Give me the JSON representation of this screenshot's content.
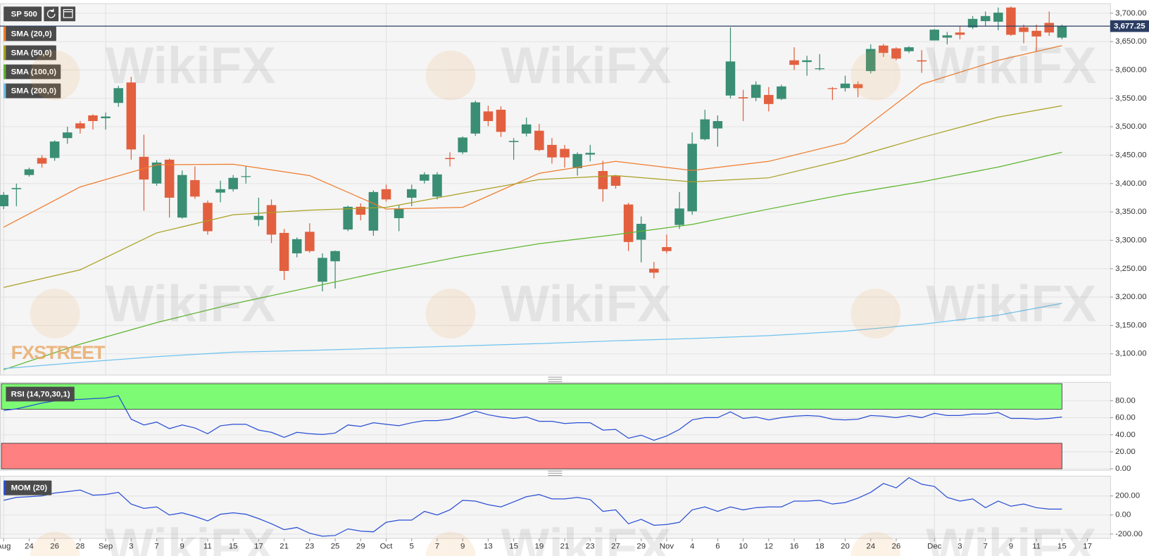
{
  "chart_data": [
    {
      "type": "candlestick",
      "title": "SP 500",
      "categories": [
        "Aug",
        null,
        "24",
        null,
        "26",
        null,
        "28",
        null,
        "Sep",
        null,
        "3",
        null,
        "7",
        null,
        "9",
        null,
        "11",
        null,
        "15",
        null,
        "17",
        null,
        "21",
        null,
        "23",
        null,
        "25",
        null,
        "29",
        null,
        "Oct",
        null,
        "5",
        null,
        "7",
        null,
        "9",
        null,
        "13",
        null,
        "15",
        null,
        "19",
        null,
        "21",
        null,
        "23",
        null,
        "27",
        null,
        "29",
        null,
        "Nov",
        null,
        "4",
        null,
        "6",
        null,
        "10",
        null,
        "12",
        null,
        "16",
        null,
        "18",
        null,
        "20",
        null,
        "24",
        null,
        "26",
        null,
        null,
        "Dec",
        null,
        "3",
        null,
        "7",
        null,
        "9",
        null,
        "11",
        null,
        "15",
        null,
        "17"
      ],
      "open": [
        3360,
        3390,
        3415,
        3445,
        3445,
        3480,
        3506,
        3520,
        3515,
        3542,
        3578,
        3447,
        3400,
        3442,
        3340,
        3406,
        3366,
        3384,
        3390,
        3412,
        3336,
        3362,
        3313,
        3277,
        3315,
        3227,
        3263,
        3319,
        3359,
        3317,
        3390,
        3339,
        3375,
        3405,
        3377,
        3445,
        3455,
        3488,
        3527,
        3530,
        3473,
        3488,
        3493,
        3468,
        3461,
        3427,
        3451,
        3422,
        3413,
        3363,
        3301,
        3250,
        3288,
        3327,
        3351,
        3478,
        3497,
        3555,
        3552,
        3551,
        3556,
        3549,
        3617,
        3614,
        3602,
        3568,
        3568,
        3575,
        3598,
        3643,
        3638,
        3633,
        3617,
        3652,
        3657,
        3666,
        3675,
        3686,
        3685,
        3710,
        3675,
        3669,
        3683,
        3657,
        null,
        null
      ],
      "high": [
        3385,
        3400,
        3428,
        3450,
        3476,
        3500,
        3510,
        3522,
        3525,
        3572,
        3588,
        3486,
        3441,
        3444,
        3423,
        3430,
        3370,
        3405,
        3415,
        3430,
        3375,
        3372,
        3320,
        3305,
        3330,
        3277,
        3282,
        3361,
        3365,
        3388,
        3398,
        3362,
        3398,
        3420,
        3420,
        3455,
        3483,
        3546,
        3537,
        3536,
        3480,
        3516,
        3505,
        3480,
        3468,
        3455,
        3468,
        3440,
        3415,
        3366,
        3342,
        3262,
        3310,
        3385,
        3490,
        3530,
        3520,
        3675,
        3565,
        3580,
        3570,
        3574,
        3640,
        3625,
        3628,
        3570,
        3590,
        3580,
        3645,
        3646,
        3640,
        3642,
        3635,
        3672,
        3667,
        3678,
        3695,
        3703,
        3710,
        3712,
        3680,
        3680,
        3703,
        3680,
        null,
        null
      ],
      "low": [
        3355,
        3360,
        3412,
        3428,
        3440,
        3470,
        3488,
        3495,
        3495,
        3535,
        3442,
        3352,
        3396,
        3340,
        3338,
        3373,
        3310,
        3367,
        3386,
        3400,
        3325,
        3295,
        3230,
        3270,
        3278,
        3210,
        3215,
        3316,
        3335,
        3308,
        3368,
        3316,
        3360,
        3400,
        3372,
        3430,
        3452,
        3484,
        3501,
        3482,
        3442,
        3483,
        3457,
        3435,
        3428,
        3414,
        3439,
        3368,
        3391,
        3281,
        3261,
        3233,
        3277,
        3320,
        3345,
        3476,
        3465,
        3550,
        3510,
        3545,
        3527,
        3547,
        3600,
        3590,
        3599,
        3547,
        3562,
        3552,
        3594,
        3623,
        3617,
        3630,
        3595,
        3652,
        3645,
        3654,
        3672,
        3678,
        3670,
        3660,
        3647,
        3633,
        3660,
        3654,
        null,
        null
      ],
      "close": [
        3380,
        3392,
        3425,
        3435,
        3474,
        3490,
        3497,
        3510,
        3518,
        3568,
        3460,
        3407,
        3437,
        3375,
        3415,
        3377,
        3316,
        3390,
        3410,
        3413,
        3343,
        3310,
        3246,
        3302,
        3281,
        3269,
        3281,
        3359,
        3345,
        3385,
        3372,
        3356,
        3390,
        3416,
        3416,
        3443,
        3481,
        3543,
        3510,
        3491,
        3475,
        3504,
        3459,
        3446,
        3446,
        3452,
        3454,
        3390,
        3396,
        3297,
        3329,
        3243,
        3281,
        3356,
        3470,
        3513,
        3510,
        3615,
        3550,
        3574,
        3540,
        3571,
        3609,
        3617,
        3603,
        3567,
        3576,
        3568,
        3637,
        3630,
        3620,
        3640,
        3615,
        3671,
        3661,
        3662,
        3690,
        3695,
        3701,
        3662,
        3667,
        3659,
        3666,
        3677.25,
        null,
        null
      ],
      "up_color": "#3a8e74",
      "down_color": "#e2603f",
      "series": [
        {
          "name": "SMA (20,0)",
          "color": "#f07b2c",
          "x": [
            0,
            6,
            12,
            18,
            24,
            30,
            36,
            42,
            48,
            54,
            60,
            66,
            72,
            78,
            83
          ],
          "values": [
            3323,
            3394,
            3433,
            3434,
            3414,
            3355,
            3358,
            3418,
            3439,
            3423,
            3439,
            3472,
            3575,
            3617,
            3643
          ]
        },
        {
          "name": "SMA (50,0)",
          "color": "#a9a023",
          "x": [
            0,
            6,
            12,
            18,
            24,
            30,
            36,
            42,
            48,
            54,
            60,
            66,
            72,
            78,
            83
          ],
          "values": [
            3217,
            3248,
            3313,
            3345,
            3353,
            3358,
            3383,
            3407,
            3414,
            3403,
            3410,
            3442,
            3481,
            3517,
            3537
          ]
        },
        {
          "name": "SMA (100,0)",
          "color": "#5db52f",
          "x": [
            0,
            6,
            12,
            18,
            24,
            30,
            36,
            42,
            48,
            54,
            60,
            66,
            72,
            78,
            83
          ],
          "values": [
            3072,
            3117,
            3155,
            3188,
            3217,
            3246,
            3272,
            3294,
            3310,
            3328,
            3355,
            3381,
            3403,
            3429,
            3455
          ]
        },
        {
          "name": "SMA (200,0)",
          "color": "#6fc2ee",
          "x": [
            0,
            6,
            12,
            18,
            24,
            30,
            36,
            42,
            48,
            54,
            60,
            66,
            72,
            78,
            83
          ],
          "values": [
            3074,
            3085,
            3095,
            3103,
            3106,
            3110,
            3114,
            3118,
            3123,
            3127,
            3132,
            3140,
            3152,
            3168,
            3189
          ]
        }
      ],
      "last_price": {
        "value": 3677.25,
        "label": "3,677.25"
      },
      "last_price_color": "#2b3d63",
      "ylim": [
        3062.6,
        3716.8
      ],
      "yticks": [
        {
          "value": 3100,
          "label": "3,100.00"
        },
        {
          "value": 3150,
          "label": "3,150.00"
        },
        {
          "value": 3200,
          "label": "3,200.00"
        },
        {
          "value": 3250,
          "label": "3,250.00"
        },
        {
          "value": 3300,
          "label": "3,300.00"
        },
        {
          "value": 3350,
          "label": "3,350.00"
        },
        {
          "value": 3400,
          "label": "3,400.00"
        },
        {
          "value": 3450,
          "label": "3,450.00"
        },
        {
          "value": 3500,
          "label": "3,500.00"
        },
        {
          "value": 3550,
          "label": "3,550.00"
        },
        {
          "value": 3600,
          "label": "3,600.00"
        },
        {
          "value": 3650,
          "label": "3,650.00"
        },
        {
          "value": 3700,
          "label": "3,700.00"
        }
      ],
      "grid": true
    },
    {
      "type": "line",
      "title": "RSI (14,70,30,1)",
      "color": "#2a4fd4",
      "values": [
        68.6,
        70.4,
        73.8,
        77.2,
        79.8,
        81.5,
        81.5,
        82.4,
        83.2,
        85.8,
        58.3,
        51.5,
        54.9,
        47.2,
        51.5,
        48,
        41.2,
        50.6,
        52.3,
        52.3,
        45.5,
        42.9,
        36.9,
        42.9,
        41.2,
        40.3,
        42,
        51.5,
        49.8,
        54.1,
        52.3,
        50.6,
        54.1,
        56.6,
        56.6,
        58.3,
        62.6,
        67.8,
        63.5,
        60.9,
        59.2,
        60.9,
        55.8,
        55.8,
        53.2,
        54.1,
        54.1,
        45.5,
        46.3,
        36,
        39.5,
        33.5,
        38.6,
        46.3,
        57.5,
        60.1,
        60.1,
        66.9,
        59.2,
        60.9,
        57.5,
        60.1,
        61.8,
        62.6,
        61.8,
        58.3,
        57.5,
        58.3,
        62.6,
        61.8,
        60.1,
        62.6,
        60.1,
        65.2,
        62.6,
        62.6,
        64.4,
        64.4,
        66.1,
        59.2,
        59.2,
        58.3,
        59.2,
        60.9,
        null,
        null
      ],
      "bands": [
        {
          "from": 70,
          "to": 100,
          "color": "#7dfb74"
        },
        {
          "from": 0,
          "to": 30,
          "color": "#ff8080"
        }
      ],
      "ylim": [
        -1.7,
        101.5
      ],
      "yticks": [
        {
          "value": 0,
          "label": "0.00"
        },
        {
          "value": 20,
          "label": "20.00"
        },
        {
          "value": 40,
          "label": "40.00"
        },
        {
          "value": 60,
          "label": "60.00"
        },
        {
          "value": 80,
          "label": "80.00"
        }
      ],
      "grid": true
    },
    {
      "type": "line",
      "title": "MOM (20)",
      "color": "#2a4fd4",
      "values": [
        154,
        185,
        192,
        200,
        231,
        246,
        262,
        208,
        215,
        238,
        115,
        69,
        85,
        0,
        23,
        -15,
        -62,
        8,
        23,
        8,
        -38,
        -92,
        -154,
        -131,
        -192,
        -223,
        -215,
        -146,
        -169,
        -177,
        -77,
        -54,
        -54,
        38,
        0,
        54,
        154,
        146,
        108,
        85,
        138,
        192,
        215,
        169,
        169,
        185,
        162,
        38,
        54,
        -92,
        -46,
        -108,
        -100,
        -77,
        54,
        85,
        38,
        85,
        54,
        77,
        85,
        85,
        146,
        146,
        154,
        115,
        131,
        177,
        238,
        331,
        285,
        392,
        323,
        300,
        185,
        146,
        169,
        77,
        146,
        92,
        115,
        77,
        62,
        62,
        null,
        null
      ],
      "ylim": [
        -246,
        408
      ],
      "yticks": [
        {
          "value": -200,
          "label": "-200.00"
        },
        {
          "value": 0,
          "label": "0.00"
        },
        {
          "value": 200,
          "label": "200.00"
        }
      ],
      "grid": true
    }
  ],
  "watermark": "WikiFX",
  "logo": "FXSTREET"
}
